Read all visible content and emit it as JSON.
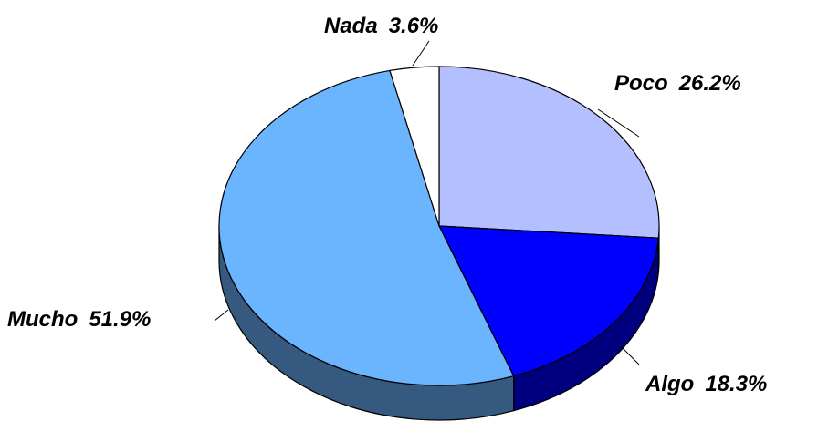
{
  "chart_data": {
    "type": "pie",
    "categories": [
      "Poco",
      "Algo",
      "Mucho",
      "Nada"
    ],
    "values": [
      26.2,
      18.3,
      51.9,
      3.6
    ],
    "value_labels": [
      "26.2%",
      "18.3%",
      "51.9%",
      "3.6%"
    ],
    "colors": [
      "#b3bfff",
      "#0000ff",
      "#6bb5ff",
      "#ffffff"
    ],
    "side_colors": [
      "#5a607f",
      "#00007f",
      "#35597f",
      "#7f7f7f"
    ]
  }
}
